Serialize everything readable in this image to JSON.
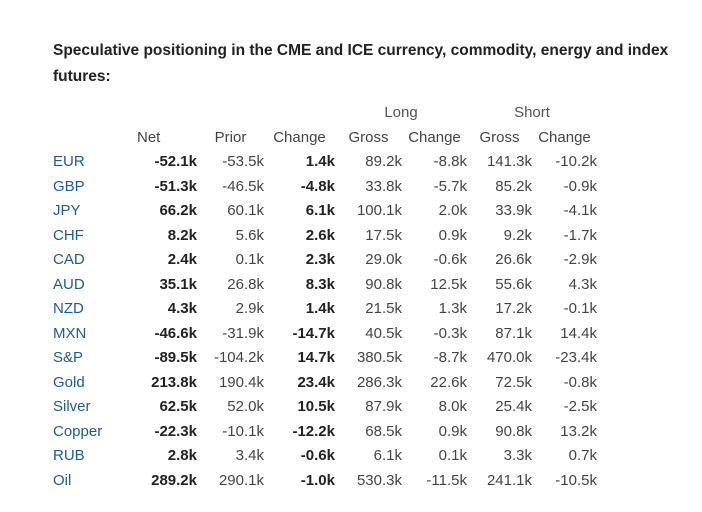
{
  "title": "Speculative positioning in the CME and ICE currency, commodity, energy and index futures:",
  "groups": {
    "long": "Long",
    "short": "Short"
  },
  "headers": {
    "net": "Net",
    "prior": "Prior",
    "change": "Change",
    "long_gross": "Gross",
    "long_change": "Change",
    "short_gross": "Gross",
    "short_change": "Change"
  },
  "rows": [
    {
      "label": "EUR",
      "net": "-52.1k",
      "prior": "-53.5k",
      "change": "1.4k",
      "long_gross": "89.2k",
      "long_change": "-8.8k",
      "short_gross": "141.3k",
      "short_change": "-10.2k"
    },
    {
      "label": "GBP",
      "net": "-51.3k",
      "prior": "-46.5k",
      "change": "-4.8k",
      "long_gross": "33.8k",
      "long_change": "-5.7k",
      "short_gross": "85.2k",
      "short_change": "-0.9k"
    },
    {
      "label": "JPY",
      "net": "66.2k",
      "prior": "60.1k",
      "change": "6.1k",
      "long_gross": "100.1k",
      "long_change": "2.0k",
      "short_gross": "33.9k",
      "short_change": "-4.1k"
    },
    {
      "label": "CHF",
      "net": "8.2k",
      "prior": "5.6k",
      "change": "2.6k",
      "long_gross": "17.5k",
      "long_change": "0.9k",
      "short_gross": "9.2k",
      "short_change": "-1.7k"
    },
    {
      "label": "CAD",
      "net": "2.4k",
      "prior": "0.1k",
      "change": "2.3k",
      "long_gross": "29.0k",
      "long_change": "-0.6k",
      "short_gross": "26.6k",
      "short_change": "-2.9k"
    },
    {
      "label": "AUD",
      "net": "35.1k",
      "prior": "26.8k",
      "change": "8.3k",
      "long_gross": "90.8k",
      "long_change": "12.5k",
      "short_gross": "55.6k",
      "short_change": "4.3k"
    },
    {
      "label": "NZD",
      "net": "4.3k",
      "prior": "2.9k",
      "change": "1.4k",
      "long_gross": "21.5k",
      "long_change": "1.3k",
      "short_gross": "17.2k",
      "short_change": "-0.1k"
    },
    {
      "label": "MXN",
      "net": "-46.6k",
      "prior": "-31.9k",
      "change": "-14.7k",
      "long_gross": "40.5k",
      "long_change": "-0.3k",
      "short_gross": "87.1k",
      "short_change": "14.4k"
    },
    {
      "label": "S&P",
      "net": "-89.5k",
      "prior": "-104.2k",
      "change": "14.7k",
      "long_gross": "380.5k",
      "long_change": "-8.7k",
      "short_gross": "470.0k",
      "short_change": "-23.4k"
    },
    {
      "label": "Gold",
      "net": "213.8k",
      "prior": "190.4k",
      "change": "23.4k",
      "long_gross": "286.3k",
      "long_change": "22.6k",
      "short_gross": "72.5k",
      "short_change": "-0.8k"
    },
    {
      "label": "Silver",
      "net": "62.5k",
      "prior": "52.0k",
      "change": "10.5k",
      "long_gross": "87.9k",
      "long_change": "8.0k",
      "short_gross": "25.4k",
      "short_change": "-2.5k"
    },
    {
      "label": "Copper",
      "net": "-22.3k",
      "prior": "-10.1k",
      "change": "-12.2k",
      "long_gross": "68.5k",
      "long_change": "0.9k",
      "short_gross": "90.8k",
      "short_change": "13.2k"
    },
    {
      "label": "RUB",
      "net": "2.8k",
      "prior": "3.4k",
      "change": "-0.6k",
      "long_gross": "6.1k",
      "long_change": "0.1k",
      "short_gross": "3.3k",
      "short_change": "0.7k"
    },
    {
      "label": "Oil",
      "net": "289.2k",
      "prior": "290.1k",
      "change": "-1.0k",
      "long_gross": "530.3k",
      "long_change": "-11.5k",
      "short_gross": "241.1k",
      "short_change": "-10.5k"
    }
  ]
}
